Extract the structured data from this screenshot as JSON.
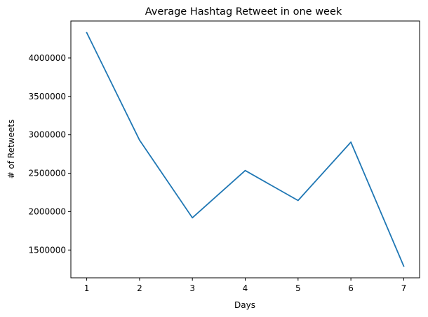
{
  "chart_data": {
    "type": "line",
    "title": "Average Hashtag Retweet in one week",
    "xlabel": "Days",
    "ylabel": "# of Retweets",
    "x": [
      1,
      2,
      3,
      4,
      5,
      6,
      7
    ],
    "series": [
      {
        "values": [
          4330000,
          2930000,
          1920000,
          2535000,
          2145000,
          2905000,
          1290000
        ],
        "color": "#1f77b4"
      }
    ],
    "xticks": [
      "1",
      "2",
      "3",
      "4",
      "5",
      "6",
      "7"
    ],
    "yticks": [
      1500000,
      2000000,
      2500000,
      3000000,
      3500000,
      4000000
    ],
    "ytick_labels": [
      "1500000",
      "2000000",
      "2500000",
      "3000000",
      "3500000",
      "4000000"
    ],
    "xlim": [
      0.7,
      7.3
    ],
    "ylim": [
      1138000,
      4482000
    ],
    "grid": false,
    "legend": "none"
  }
}
